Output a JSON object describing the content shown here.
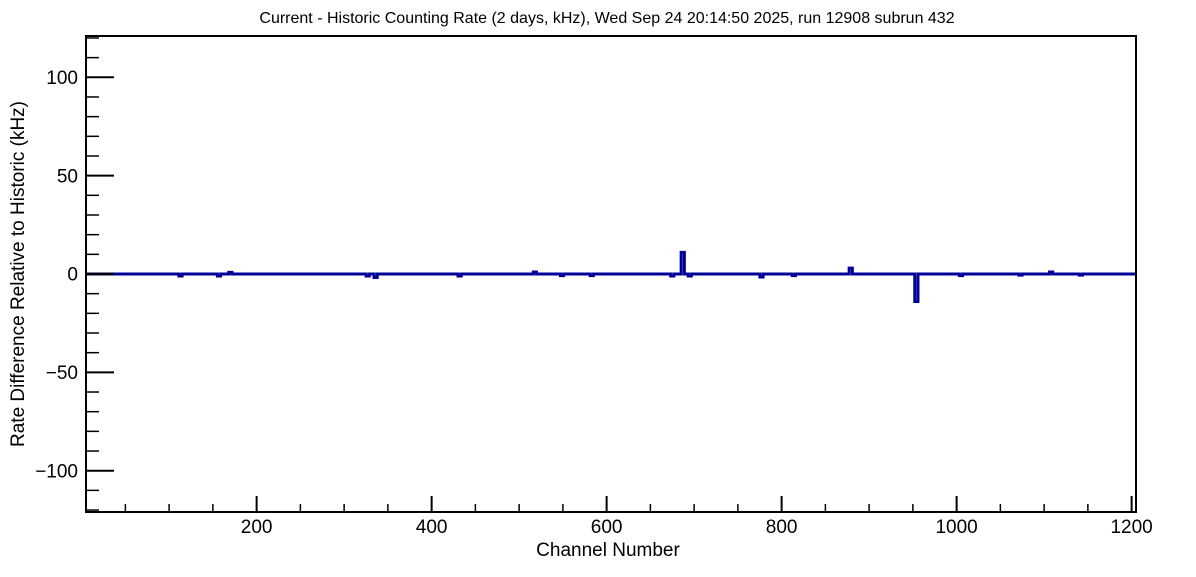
{
  "figure": {
    "background_color": "#ffffff",
    "frame_border_color": "#000000"
  },
  "chart_data": {
    "type": "line",
    "title": "Current - Historic Counting Rate (2 days, kHz), Wed Sep 24 20:14:50 2025, run 12908 subrun 432",
    "xlabel": "Channel Number",
    "ylabel": "Rate Difference Relative to Historic (kHz)",
    "xlim": [
      5,
      1205
    ],
    "ylim": [
      -121,
      121
    ],
    "x_major_ticks": [
      200,
      400,
      600,
      800,
      1000,
      1200
    ],
    "x_minor_tick_step": 50,
    "y_major_ticks": [
      -100,
      -50,
      0,
      50,
      100
    ],
    "y_minor_tick_step": 10,
    "grid": false,
    "legend": false,
    "line_color": "#000099",
    "axis_color": "#000000",
    "baseline_value": 0,
    "series": [
      {
        "name": "current-minus-historic-rate",
        "description": "flat at 0 kHz across all channels with isolated spikes",
        "deviations": [
          {
            "channel": 113,
            "value": -1
          },
          {
            "channel": 157,
            "value": -1
          },
          {
            "channel": 170,
            "value": 0.8
          },
          {
            "channel": 327,
            "value": -1
          },
          {
            "channel": 336,
            "value": -1.8
          },
          {
            "channel": 432,
            "value": -1
          },
          {
            "channel": 518,
            "value": 1
          },
          {
            "channel": 549,
            "value": -0.8
          },
          {
            "channel": 583,
            "value": -0.8
          },
          {
            "channel": 675,
            "value": -1
          },
          {
            "channel": 687,
            "value": 11
          },
          {
            "channel": 695,
            "value": -1
          },
          {
            "channel": 777,
            "value": -1.5
          },
          {
            "channel": 814,
            "value": -0.8
          },
          {
            "channel": 879,
            "value": 3
          },
          {
            "channel": 954,
            "value": -14
          },
          {
            "channel": 1005,
            "value": -0.8
          },
          {
            "channel": 1073,
            "value": -0.6
          },
          {
            "channel": 1108,
            "value": 1
          },
          {
            "channel": 1142,
            "value": -0.6
          }
        ]
      }
    ]
  }
}
